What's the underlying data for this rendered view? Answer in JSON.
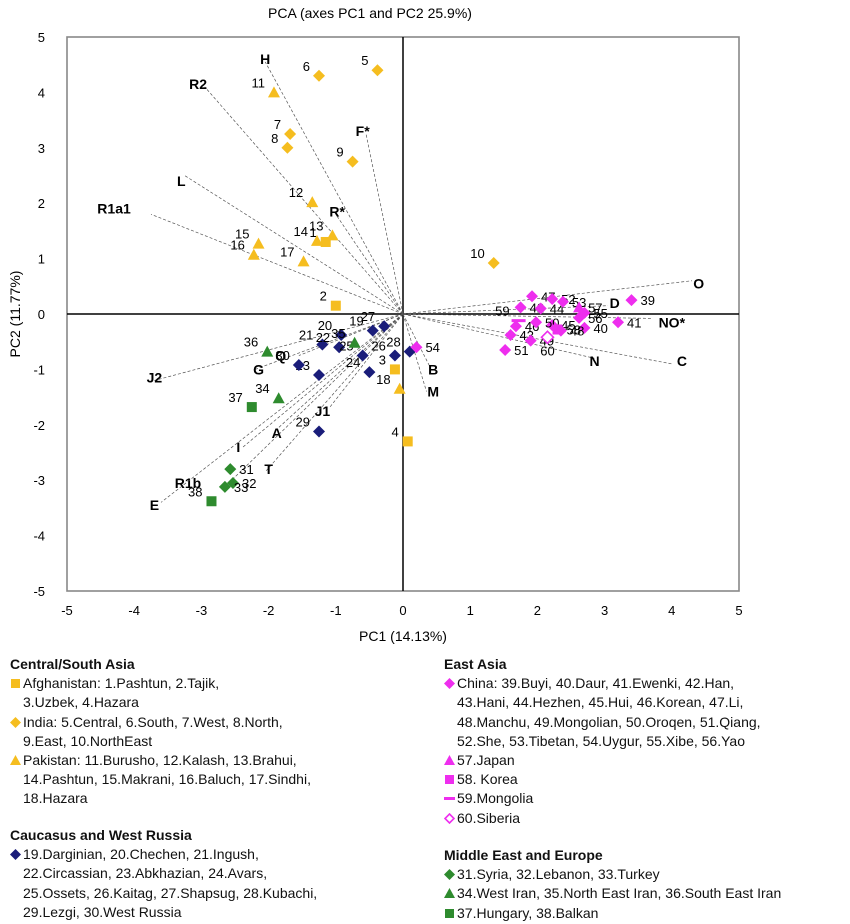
{
  "chart_data": {
    "type": "scatter",
    "title": "PCA (axes PC1 and PC2 25.9%)",
    "xlabel": "PC1 (14.13%)",
    "ylabel": "PC2 (11.77%)",
    "xlim": [
      -5,
      5
    ],
    "ylim": [
      -5,
      5
    ],
    "xticks": [
      -5,
      -4,
      -3,
      -2,
      -1,
      0,
      1,
      2,
      3,
      4,
      5
    ],
    "yticks": [
      -5,
      -4,
      -3,
      -2,
      -1,
      0,
      1,
      2,
      3,
      4,
      5
    ],
    "grid": false,
    "populations": [
      {
        "id": "1",
        "x": -1.15,
        "y": 1.3,
        "group": "afghanistan"
      },
      {
        "id": "2",
        "x": -1.0,
        "y": 0.15,
        "group": "afghanistan"
      },
      {
        "id": "3",
        "x": -0.12,
        "y": -1.0,
        "group": "afghanistan"
      },
      {
        "id": "4",
        "x": 0.07,
        "y": -2.3,
        "group": "afghanistan"
      },
      {
        "id": "5",
        "x": -0.38,
        "y": 4.4,
        "group": "india"
      },
      {
        "id": "6",
        "x": -1.25,
        "y": 4.3,
        "group": "india"
      },
      {
        "id": "7",
        "x": -1.68,
        "y": 3.25,
        "group": "india"
      },
      {
        "id": "8",
        "x": -1.72,
        "y": 3.0,
        "group": "india"
      },
      {
        "id": "9",
        "x": -0.75,
        "y": 2.75,
        "group": "india"
      },
      {
        "id": "10",
        "x": 1.35,
        "y": 0.92,
        "group": "india"
      },
      {
        "id": "11",
        "x": -1.92,
        "y": 4.0,
        "group": "pakistan"
      },
      {
        "id": "12",
        "x": -1.35,
        "y": 2.02,
        "group": "pakistan"
      },
      {
        "id": "13",
        "x": -1.05,
        "y": 1.42,
        "group": "pakistan"
      },
      {
        "id": "14",
        "x": -1.28,
        "y": 1.32,
        "group": "pakistan"
      },
      {
        "id": "15",
        "x": -2.15,
        "y": 1.27,
        "group": "pakistan"
      },
      {
        "id": "16",
        "x": -2.22,
        "y": 1.07,
        "group": "pakistan"
      },
      {
        "id": "17",
        "x": -1.48,
        "y": 0.95,
        "group": "pakistan"
      },
      {
        "id": "18",
        "x": -0.05,
        "y": -1.35,
        "group": "pakistan"
      },
      {
        "id": "19",
        "x": -0.45,
        "y": -0.3,
        "group": "caucasus"
      },
      {
        "id": "20",
        "x": -0.92,
        "y": -0.38,
        "group": "caucasus"
      },
      {
        "id": "21",
        "x": -1.2,
        "y": -0.55,
        "group": "caucasus"
      },
      {
        "id": "22",
        "x": -0.95,
        "y": -0.6,
        "group": "caucasus"
      },
      {
        "id": "23",
        "x": -1.25,
        "y": -1.1,
        "group": "caucasus"
      },
      {
        "id": "24",
        "x": -0.5,
        "y": -1.05,
        "group": "caucasus"
      },
      {
        "id": "25",
        "x": -0.6,
        "y": -0.75,
        "group": "caucasus"
      },
      {
        "id": "26",
        "x": -0.12,
        "y": -0.75,
        "group": "caucasus"
      },
      {
        "id": "27",
        "x": -0.28,
        "y": -0.22,
        "group": "caucasus"
      },
      {
        "id": "28",
        "x": 0.1,
        "y": -0.68,
        "group": "caucasus"
      },
      {
        "id": "29",
        "x": -1.25,
        "y": -2.12,
        "group": "caucasus"
      },
      {
        "id": "30",
        "x": -1.55,
        "y": -0.92,
        "group": "caucasus"
      },
      {
        "id": "31",
        "x": -2.57,
        "y": -2.8,
        "group": "middle_east"
      },
      {
        "id": "32",
        "x": -2.53,
        "y": -3.05,
        "group": "middle_east"
      },
      {
        "id": "33",
        "x": -2.65,
        "y": -3.12,
        "group": "middle_east"
      },
      {
        "id": "34",
        "x": -1.85,
        "y": -1.52,
        "group": "iran"
      },
      {
        "id": "35",
        "x": -0.72,
        "y": -0.52,
        "group": "iran"
      },
      {
        "id": "36",
        "x": -2.02,
        "y": -0.68,
        "group": "iran"
      },
      {
        "id": "37",
        "x": -2.25,
        "y": -1.68,
        "group": "europe"
      },
      {
        "id": "38",
        "x": -2.85,
        "y": -3.38,
        "group": "europe"
      },
      {
        "id": "39",
        "x": 3.4,
        "y": 0.25,
        "group": "china"
      },
      {
        "id": "40",
        "x": 2.7,
        "y": -0.25,
        "group": "china"
      },
      {
        "id": "41",
        "x": 3.2,
        "y": -0.15,
        "group": "china"
      },
      {
        "id": "42",
        "x": 1.75,
        "y": 0.12,
        "group": "china"
      },
      {
        "id": "43",
        "x": 1.6,
        "y": -0.38,
        "group": "china"
      },
      {
        "id": "44",
        "x": 2.05,
        "y": 0.1,
        "group": "china"
      },
      {
        "id": "45",
        "x": 2.22,
        "y": -0.2,
        "group": "china"
      },
      {
        "id": "46",
        "x": 1.68,
        "y": -0.22,
        "group": "china"
      },
      {
        "id": "47",
        "x": 1.92,
        "y": 0.32,
        "group": "china"
      },
      {
        "id": "48",
        "x": 2.35,
        "y": -0.3,
        "group": "china"
      },
      {
        "id": "49",
        "x": 1.9,
        "y": -0.48,
        "group": "china"
      },
      {
        "id": "50",
        "x": 1.98,
        "y": -0.15,
        "group": "china"
      },
      {
        "id": "51",
        "x": 1.52,
        "y": -0.65,
        "group": "china"
      },
      {
        "id": "52",
        "x": 2.22,
        "y": 0.27,
        "group": "china"
      },
      {
        "id": "53",
        "x": 2.38,
        "y": 0.22,
        "group": "china"
      },
      {
        "id": "54",
        "x": 0.2,
        "y": -0.6,
        "group": "china"
      },
      {
        "id": "55",
        "x": 2.7,
        "y": 0.02,
        "group": "china"
      },
      {
        "id": "56",
        "x": 2.62,
        "y": -0.07,
        "group": "china"
      },
      {
        "id": "57",
        "x": 2.62,
        "y": 0.12,
        "group": "japan"
      },
      {
        "id": "58",
        "x": 2.3,
        "y": -0.28,
        "group": "korea"
      },
      {
        "id": "59",
        "x": 1.72,
        "y": -0.12,
        "group": "mongolia"
      },
      {
        "id": "60",
        "x": 2.15,
        "y": -0.42,
        "group": "siberia"
      }
    ],
    "vectors": [
      {
        "label": "H",
        "x": -2.05,
        "y": 4.55,
        "lx": -2.05,
        "ly": 4.6
      },
      {
        "label": "R2",
        "x": -2.95,
        "y": 4.1,
        "lx": -3.05,
        "ly": 4.15
      },
      {
        "label": "F*",
        "x": -0.55,
        "y": 3.25,
        "lx": -0.6,
        "ly": 3.3
      },
      {
        "label": "L",
        "x": -3.25,
        "y": 2.5,
        "lx": -3.3,
        "ly": 2.4
      },
      {
        "label": "R1a1",
        "x": -3.75,
        "y": 1.8,
        "lx": -4.3,
        "ly": 1.9
      },
      {
        "label": "R*",
        "x": -1.0,
        "y": 1.8,
        "lx": -0.98,
        "ly": 1.85
      },
      {
        "label": "O",
        "x": 4.3,
        "y": 0.6,
        "lx": 4.4,
        "ly": 0.55
      },
      {
        "label": "D",
        "x": 3.05,
        "y": 0.15,
        "lx": 3.15,
        "ly": 0.2
      },
      {
        "label": "NO*",
        "x": 3.7,
        "y": -0.08,
        "lx": 4.0,
        "ly": -0.15
      },
      {
        "label": "N",
        "x": 2.85,
        "y": -0.8,
        "lx": 2.85,
        "ly": -0.85
      },
      {
        "label": "C",
        "x": 4.0,
        "y": -0.9,
        "lx": 4.15,
        "ly": -0.85
      },
      {
        "label": "B",
        "x": 0.4,
        "y": -0.95,
        "lx": 0.45,
        "ly": -1.0
      },
      {
        "label": "M",
        "x": 0.35,
        "y": -1.4,
        "lx": 0.45,
        "ly": -1.4
      },
      {
        "label": "Q",
        "x": -1.55,
        "y": -0.75,
        "lx": -1.82,
        "ly": -0.75
      },
      {
        "label": "J2",
        "x": -3.7,
        "y": -1.2,
        "lx": -3.7,
        "ly": -1.15
      },
      {
        "label": "G",
        "x": -2.2,
        "y": -1.0,
        "lx": -2.15,
        "ly": -1.0
      },
      {
        "label": "J1",
        "x": -1.1,
        "y": -1.7,
        "lx": -1.2,
        "ly": -1.75
      },
      {
        "label": "A",
        "x": -1.85,
        "y": -2.05,
        "lx": -1.88,
        "ly": -2.15
      },
      {
        "label": "I",
        "x": -2.38,
        "y": -2.4,
        "lx": -2.45,
        "ly": -2.4
      },
      {
        "label": "T",
        "x": -2.05,
        "y": -2.85,
        "lx": -2.0,
        "ly": -2.8
      },
      {
        "label": "R1b",
        "x": -2.55,
        "y": -3.0,
        "lx": -3.2,
        "ly": -3.05
      },
      {
        "label": "E",
        "x": -3.6,
        "y": -3.4,
        "lx": -3.7,
        "ly": -3.45
      }
    ],
    "marker_styles": {
      "afghanistan": {
        "shape": "square",
        "color": "#F5BD1F",
        "label_side": "left"
      },
      "india": {
        "shape": "diamond",
        "color": "#F5BD1F",
        "label_side": "left"
      },
      "pakistan": {
        "shape": "triangle",
        "color": "#F5BD1F",
        "label_side": "left"
      },
      "caucasus": {
        "shape": "diamond",
        "color": "#1A1D7A",
        "label_side": "left"
      },
      "middle_east": {
        "shape": "diamond",
        "color": "#2E8B2E",
        "label_side": "right"
      },
      "iran": {
        "shape": "triangle",
        "color": "#2E8B2E",
        "label_side": "left"
      },
      "europe": {
        "shape": "square",
        "color": "#2E8B2E",
        "label_side": "left"
      },
      "china": {
        "shape": "diamond",
        "color": "#EE2EEE",
        "label_side": "right"
      },
      "japan": {
        "shape": "triangle",
        "color": "#EE2EEE",
        "label_side": "right"
      },
      "korea": {
        "shape": "square",
        "color": "#EE2EEE",
        "label_side": "right"
      },
      "mongolia": {
        "shape": "dash",
        "color": "#EE2EEE",
        "label_side": "left"
      },
      "siberia": {
        "shape": "diamond-open",
        "color": "#EE2EEE",
        "label_side": "below"
      }
    }
  },
  "legend": {
    "central_south_asia": {
      "title": "Central/South Asia",
      "items": [
        {
          "shape": "square",
          "color": "#F5BD1F",
          "text": "Afghanistan: 1.Pashtun, 2.Tajik,\n3.Uzbek, 4.Hazara"
        },
        {
          "shape": "diamond",
          "color": "#F5BD1F",
          "text": "India: 5.Central, 6.South, 7.West, 8.North,\n9.East, 10.NorthEast"
        },
        {
          "shape": "triangle",
          "color": "#F5BD1F",
          "text": "Pakistan: 11.Burusho, 12.Kalash, 13.Brahui,\n14.Pashtun, 15.Makrani, 16.Baluch, 17.Sindhi,\n18.Hazara"
        }
      ]
    },
    "caucasus": {
      "title": "Caucasus and West Russia",
      "items": [
        {
          "shape": "diamond",
          "color": "#1A1D7A",
          "text": "19.Darginian, 20.Chechen, 21.Ingush,\n22.Circassian, 23.Abkhazian, 24.Avars,\n25.Ossets, 26.Kaitag, 27.Shapsug, 28.Kubachi,\n29.Lezgi, 30.West Russia"
        }
      ]
    },
    "east_asia": {
      "title": "East Asia",
      "items": [
        {
          "shape": "diamond",
          "color": "#EE2EEE",
          "text": "China: 39.Buyi, 40.Daur, 41.Ewenki, 42.Han,\n43.Hani, 44.Hezhen, 45.Hui, 46.Korean, 47.Li,\n48.Manchu, 49.Mongolian, 50.Oroqen, 51.Qiang,\n52.She, 53.Tibetan, 54.Uygur, 55.Xibe, 56.Yao"
        },
        {
          "shape": "triangle",
          "color": "#EE2EEE",
          "text": "57.Japan"
        },
        {
          "shape": "square",
          "color": "#EE2EEE",
          "text": "58. Korea"
        },
        {
          "shape": "dash",
          "color": "#EE2EEE",
          "text": "59.Mongolia"
        },
        {
          "shape": "diamond-open",
          "color": "#EE2EEE",
          "text": "60.Siberia"
        }
      ]
    },
    "middle_east_europe": {
      "title": "Middle East and Europe",
      "items": [
        {
          "shape": "diamond",
          "color": "#2E8B2E",
          "text": "31.Syria, 32.Lebanon, 33.Turkey"
        },
        {
          "shape": "triangle",
          "color": "#2E8B2E",
          "text": "34.West Iran, 35.North East Iran, 36.South East Iran"
        },
        {
          "shape": "square",
          "color": "#2E8B2E",
          "text": "37.Hungary, 38.Balkan"
        }
      ]
    }
  }
}
